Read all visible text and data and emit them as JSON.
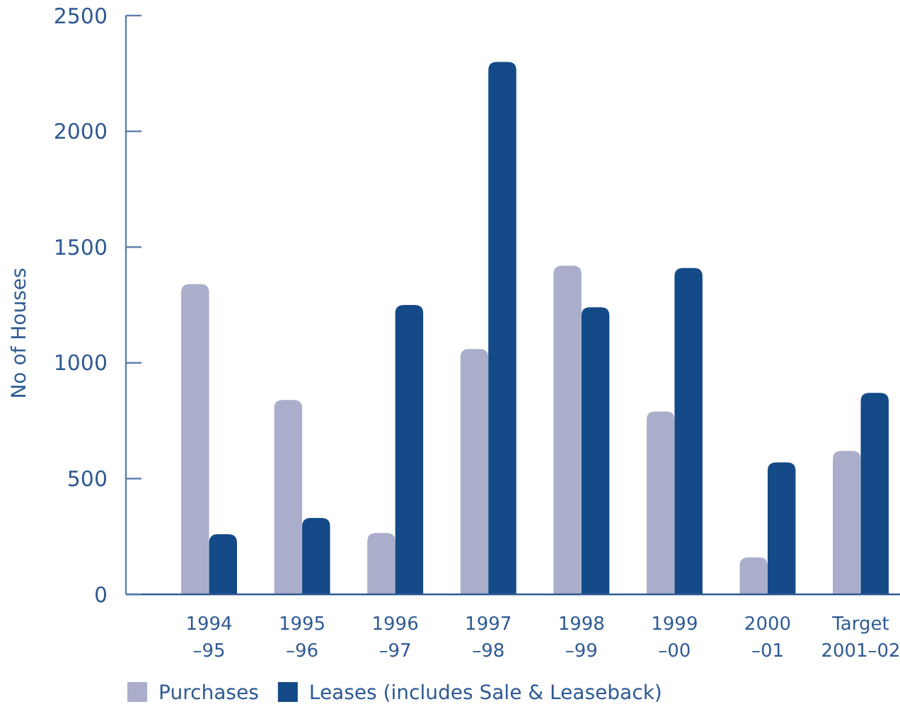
{
  "chart_data": {
    "type": "bar",
    "ylabel": "No of Houses",
    "categories": [
      "1994\n–95",
      "1995\n–96",
      "1996\n–97",
      "1997\n–98",
      "1998\n–99",
      "1999\n–00",
      "2000\n–01",
      "Target\n2001–02"
    ],
    "series": [
      {
        "name": "Purchases",
        "color": "#abaecb",
        "values": [
          1340,
          840,
          265,
          1060,
          1420,
          790,
          160,
          620
        ]
      },
      {
        "name": "Leases (includes Sale & Leaseback)",
        "color": "#134a87",
        "values": [
          260,
          330,
          1250,
          2300,
          1240,
          1410,
          570,
          870
        ]
      }
    ],
    "ylim": [
      0,
      2500
    ],
    "yticks": [
      0,
      500,
      1000,
      1500,
      2000,
      2500
    ],
    "grid": false,
    "legend": "bottom left"
  }
}
